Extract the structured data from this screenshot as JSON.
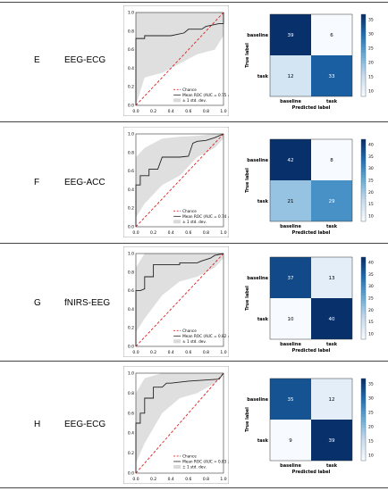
{
  "rows": [
    {
      "letter": "E",
      "modality": "EEG-ECG",
      "roc": {
        "xticks": [
          "0.0",
          "0.2",
          "0.4",
          "0.6",
          "0.8",
          "1.0"
        ],
        "yticks": [
          "0.0",
          "0.2",
          "0.4",
          "0.6",
          "0.8",
          "1.0"
        ],
        "legend": [
          "Chance",
          "Mean ROC (AUC = 0.75 ± 0.30)",
          "± 1 std. dev."
        ]
      },
      "cm": {
        "ylabel": "True label",
        "xlabel": "Predicted label",
        "row_labels": [
          "baseline",
          "task"
        ],
        "col_labels": [
          "baseline",
          "task"
        ],
        "values": [
          [
            39,
            6
          ],
          [
            12,
            33
          ]
        ],
        "colorbar_ticks": [
          "35",
          "30",
          "25",
          "20",
          "15",
          "10"
        ]
      }
    },
    {
      "letter": "F",
      "modality": "EEG-ACC",
      "roc": {
        "xticks": [
          "0.0",
          "0.2",
          "0.4",
          "0.6",
          "0.8",
          "1.0"
        ],
        "yticks": [
          "0.0",
          "0.2",
          "0.4",
          "0.6",
          "0.8",
          "1.0"
        ],
        "legend": [
          "Chance",
          "Mean ROC (AUC = 0.74 ± 0.21)",
          "± 1 std. dev."
        ]
      },
      "cm": {
        "ylabel": "True label",
        "xlabel": "Predicted label",
        "row_labels": [
          "baseline",
          "task"
        ],
        "col_labels": [
          "baseline",
          "task"
        ],
        "values": [
          [
            42,
            8
          ],
          [
            21,
            29
          ]
        ],
        "colorbar_ticks": [
          "40",
          "35",
          "30",
          "25",
          "20",
          "15",
          "10"
        ]
      }
    },
    {
      "letter": "G",
      "modality": "fNIRS-EEG",
      "roc": {
        "xticks": [
          "0.0",
          "0.2",
          "0.4",
          "0.6",
          "0.8",
          "1.0"
        ],
        "yticks": [
          "0.0",
          "0.2",
          "0.4",
          "0.6",
          "0.8",
          "1.0"
        ],
        "legend": [
          "Chance",
          "Mean ROC (AUC = 0.82 ± 0.17)",
          "± 1 std. dev."
        ]
      },
      "cm": {
        "ylabel": "True label",
        "xlabel": "Predicted label",
        "row_labels": [
          "baseline",
          "task"
        ],
        "col_labels": [
          "baseline",
          "task"
        ],
        "values": [
          [
            37,
            13
          ],
          [
            10,
            40
          ]
        ],
        "colorbar_ticks": [
          "40",
          "35",
          "30",
          "25",
          "20",
          "15",
          "10"
        ]
      }
    },
    {
      "letter": "H",
      "modality": "EEG-ECG",
      "roc": {
        "xticks": [
          "0.0",
          "0.2",
          "0.4",
          "0.6",
          "0.8",
          "1.0"
        ],
        "yticks": [
          "0.0",
          "0.2",
          "0.4",
          "0.6",
          "0.8",
          "1.0"
        ],
        "legend": [
          "Chance",
          "Mean ROC (AUC = 0.83 ± 0.18)",
          "± 1 std. dev."
        ]
      },
      "cm": {
        "ylabel": "True label",
        "xlabel": "Predicted label",
        "row_labels": [
          "baseline",
          "task"
        ],
        "col_labels": [
          "baseline",
          "task"
        ],
        "values": [
          [
            35,
            12
          ],
          [
            9,
            39
          ]
        ],
        "colorbar_ticks": [
          "35",
          "30",
          "25",
          "20",
          "15",
          "10"
        ]
      }
    }
  ],
  "chart_data": [
    {
      "type": "line",
      "panel": "E",
      "xlim": [
        0,
        1
      ],
      "ylim": [
        0,
        1
      ],
      "series": [
        {
          "name": "Chance",
          "x": [
            0,
            1
          ],
          "y": [
            0,
            1
          ]
        },
        {
          "name": "Mean ROC (AUC = 0.75 ± 0.30)",
          "x": [
            0,
            0.0,
            0.1,
            0.1,
            0.4,
            0.55,
            0.6,
            0.75,
            0.8,
            0.95,
            1.0,
            1.0
          ],
          "y": [
            0,
            0.72,
            0.72,
            0.75,
            0.75,
            0.78,
            0.82,
            0.82,
            0.85,
            0.88,
            0.88,
            1.0
          ]
        },
        {
          "name": "± 1 std. dev.",
          "x": [
            0.0,
            0.1,
            0.3,
            0.5,
            0.7,
            0.9,
            1.0
          ],
          "upper": [
            1.0,
            1.0,
            1.0,
            1.0,
            1.0,
            1.0,
            1.0
          ],
          "lower": [
            0.0,
            0.3,
            0.35,
            0.45,
            0.55,
            0.6,
            0.75
          ]
        }
      ],
      "legend_position": "lower-right"
    },
    {
      "type": "line",
      "panel": "F",
      "xlim": [
        0,
        1
      ],
      "ylim": [
        0,
        1
      ],
      "series": [
        {
          "name": "Chance",
          "x": [
            0,
            1
          ],
          "y": [
            0,
            1
          ]
        },
        {
          "name": "Mean ROC (AUC = 0.74 ± 0.21)",
          "x": [
            0,
            0.0,
            0.05,
            0.05,
            0.15,
            0.15,
            0.25,
            0.3,
            0.5,
            0.6,
            0.65,
            0.7,
            0.8,
            0.9,
            1.0
          ],
          "y": [
            0,
            0.45,
            0.45,
            0.55,
            0.55,
            0.62,
            0.62,
            0.75,
            0.75,
            0.76,
            0.9,
            0.92,
            0.93,
            0.96,
            1.0
          ]
        },
        {
          "name": "± 1 std. dev.",
          "x": [
            0.0,
            0.1,
            0.3,
            0.5,
            0.7,
            0.9,
            1.0
          ],
          "upper": [
            0.75,
            0.85,
            0.95,
            0.97,
            0.98,
            1.0,
            1.0
          ],
          "lower": [
            0.1,
            0.25,
            0.45,
            0.55,
            0.75,
            0.85,
            0.95
          ]
        }
      ],
      "legend_position": "lower-right"
    },
    {
      "type": "line",
      "panel": "G",
      "xlim": [
        0,
        1
      ],
      "ylim": [
        0,
        1
      ],
      "series": [
        {
          "name": "Chance",
          "x": [
            0,
            1
          ],
          "y": [
            0,
            1
          ]
        },
        {
          "name": "Mean ROC (AUC = 0.82 ± 0.17)",
          "x": [
            0,
            0.0,
            0.05,
            0.1,
            0.1,
            0.2,
            0.2,
            0.5,
            0.5,
            0.7,
            0.75,
            0.85,
            0.9,
            1.0
          ],
          "y": [
            0,
            0.6,
            0.6,
            0.62,
            0.75,
            0.75,
            0.88,
            0.88,
            0.9,
            0.9,
            0.92,
            0.95,
            0.98,
            1.0
          ]
        },
        {
          "name": "± 1 std. dev.",
          "x": [
            0.0,
            0.1,
            0.3,
            0.5,
            0.7,
            0.9,
            1.0
          ],
          "upper": [
            0.85,
            1.0,
            1.0,
            1.0,
            1.0,
            1.0,
            1.0
          ],
          "lower": [
            0.15,
            0.3,
            0.55,
            0.7,
            0.75,
            0.85,
            0.95
          ]
        }
      ],
      "legend_position": "lower-right"
    },
    {
      "type": "line",
      "panel": "H",
      "xlim": [
        0,
        1
      ],
      "ylim": [
        0,
        1
      ],
      "series": [
        {
          "name": "Chance",
          "x": [
            0,
            1
          ],
          "y": [
            0,
            1
          ]
        },
        {
          "name": "Mean ROC (AUC = 0.83 ± 0.18)",
          "x": [
            0,
            0.0,
            0.05,
            0.05,
            0.1,
            0.1,
            0.2,
            0.2,
            0.3,
            0.35,
            0.4,
            0.6,
            0.95,
            1.0
          ],
          "y": [
            0,
            0.5,
            0.5,
            0.6,
            0.6,
            0.75,
            0.75,
            0.86,
            0.86,
            0.9,
            0.9,
            0.92,
            0.94,
            1.0
          ]
        },
        {
          "name": "± 1 std. dev.",
          "x": [
            0.0,
            0.1,
            0.3,
            0.5,
            0.7,
            0.9,
            1.0
          ],
          "upper": [
            0.8,
            0.95,
            1.0,
            1.0,
            1.0,
            1.0,
            1.0
          ],
          "lower": [
            0.1,
            0.3,
            0.6,
            0.75,
            0.8,
            0.9,
            1.0
          ]
        }
      ],
      "legend_position": "lower-right"
    },
    {
      "type": "heatmap",
      "panel": "E",
      "rows": [
        "baseline",
        "task"
      ],
      "cols": [
        "baseline",
        "task"
      ],
      "values": [
        [
          39,
          6
        ],
        [
          12,
          33
        ]
      ]
    },
    {
      "type": "heatmap",
      "panel": "F",
      "rows": [
        "baseline",
        "task"
      ],
      "cols": [
        "baseline",
        "task"
      ],
      "values": [
        [
          42,
          8
        ],
        [
          21,
          29
        ]
      ]
    },
    {
      "type": "heatmap",
      "panel": "G",
      "rows": [
        "baseline",
        "task"
      ],
      "cols": [
        "baseline",
        "task"
      ],
      "values": [
        [
          37,
          13
        ],
        [
          10,
          40
        ]
      ]
    },
    {
      "type": "heatmap",
      "panel": "H",
      "rows": [
        "baseline",
        "task"
      ],
      "cols": [
        "baseline",
        "task"
      ],
      "values": [
        [
          35,
          12
        ],
        [
          9,
          39
        ]
      ]
    }
  ]
}
